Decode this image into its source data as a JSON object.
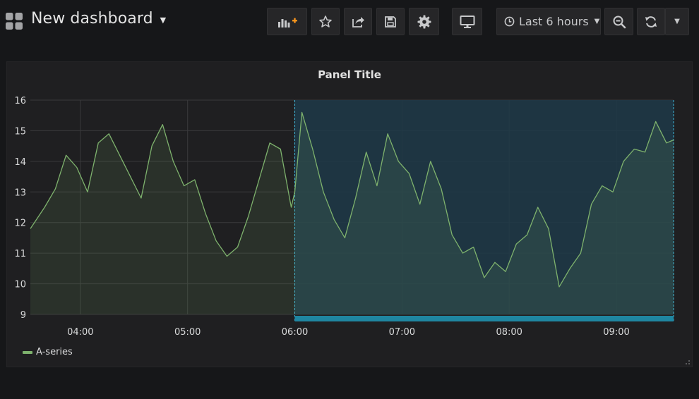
{
  "header": {
    "title": "New dashboard",
    "time_range_label": "Last 6 hours"
  },
  "icons": {
    "grid": "grid-icon",
    "caret": "caret-down-icon",
    "add_panel": "add-panel-icon",
    "star": "star-icon",
    "share": "share-icon",
    "save": "save-icon",
    "settings": "gear-icon",
    "tv": "monitor-icon",
    "clock": "clock-icon",
    "zoom_out": "zoom-out-icon",
    "refresh": "refresh-icon",
    "refresh_menu": "caret-down-icon"
  },
  "colors": {
    "accent_orange": "#f7941d",
    "series": "#7eb26d",
    "selection_fill": "#1f3a48",
    "selection_bar": "#1f86a1"
  },
  "panel": {
    "title": "Panel Title"
  },
  "chart_data": {
    "type": "line",
    "title": "Panel Title",
    "xlabel": "",
    "ylabel": "",
    "x_ticks": [
      "04:00",
      "05:00",
      "06:00",
      "07:00",
      "08:00",
      "09:00"
    ],
    "y_ticks": [
      9,
      10,
      11,
      12,
      13,
      14,
      15,
      16
    ],
    "ylim": [
      9,
      16
    ],
    "xlim": [
      "03:32",
      "09:32"
    ],
    "grid": true,
    "legend": "bottom-left",
    "fill": true,
    "selected_range": [
      "06:00",
      "09:32"
    ],
    "series": [
      {
        "name": "A-series",
        "x": [
          "03:32",
          "03:40",
          "03:46",
          "03:52",
          "03:58",
          "04:04",
          "04:10",
          "04:16",
          "04:22",
          "04:28",
          "04:34",
          "04:40",
          "04:46",
          "04:52",
          "04:58",
          "05:04",
          "05:10",
          "05:16",
          "05:22",
          "05:28",
          "05:34",
          "05:40",
          "05:46",
          "05:52",
          "05:58",
          "06:00",
          "06:04",
          "06:10",
          "06:16",
          "06:22",
          "06:28",
          "06:34",
          "06:40",
          "06:46",
          "06:52",
          "06:58",
          "07:04",
          "07:10",
          "07:16",
          "07:22",
          "07:28",
          "07:34",
          "07:40",
          "07:46",
          "07:52",
          "07:58",
          "08:04",
          "08:10",
          "08:16",
          "08:22",
          "08:28",
          "08:34",
          "08:40",
          "08:46",
          "08:52",
          "08:58",
          "09:04",
          "09:10",
          "09:16",
          "09:22",
          "09:28",
          "09:32"
        ],
        "values": [
          11.8,
          12.5,
          13.1,
          14.2,
          13.8,
          13.0,
          14.6,
          14.9,
          14.2,
          13.5,
          12.8,
          14.5,
          15.2,
          14.0,
          13.2,
          13.4,
          12.3,
          11.4,
          10.9,
          11.2,
          12.2,
          13.4,
          14.6,
          14.4,
          12.5,
          13.0,
          15.6,
          14.4,
          13.0,
          12.1,
          11.5,
          12.8,
          14.3,
          13.2,
          14.9,
          14.0,
          13.6,
          12.6,
          14.0,
          13.1,
          11.6,
          11.0,
          11.2,
          10.2,
          10.7,
          10.4,
          11.3,
          11.6,
          12.5,
          11.8,
          9.9,
          10.5,
          11.0,
          12.6,
          13.2,
          13.0,
          14.0,
          14.4,
          14.3,
          15.3,
          14.6,
          14.7
        ]
      }
    ]
  }
}
